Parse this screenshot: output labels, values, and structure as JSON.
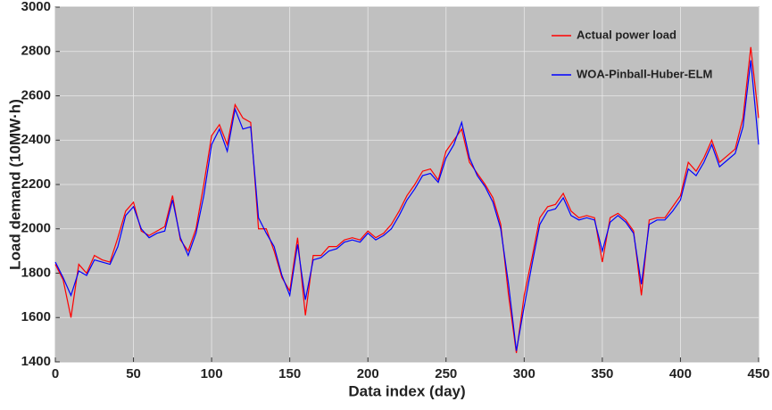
{
  "chart_data": {
    "type": "line",
    "xlabel": "Data index (day)",
    "ylabel": "Load demand (10MW·h)",
    "x": [
      0,
      5,
      10,
      15,
      20,
      25,
      30,
      35,
      40,
      45,
      50,
      55,
      60,
      65,
      70,
      75,
      80,
      85,
      90,
      95,
      100,
      105,
      110,
      115,
      120,
      125,
      130,
      135,
      140,
      145,
      150,
      155,
      160,
      165,
      170,
      175,
      180,
      185,
      190,
      195,
      200,
      205,
      210,
      215,
      220,
      225,
      230,
      235,
      240,
      245,
      250,
      255,
      260,
      265,
      270,
      275,
      280,
      285,
      290,
      295,
      300,
      305,
      310,
      315,
      320,
      325,
      330,
      335,
      340,
      345,
      350,
      355,
      360,
      365,
      370,
      375,
      380,
      385,
      390,
      395,
      400,
      405,
      410,
      415,
      420,
      425,
      430,
      435,
      440,
      445,
      450
    ],
    "series": [
      {
        "name": "Actual power load",
        "color": "#ff0000",
        "values": [
          1840,
          1770,
          1600,
          1840,
          1800,
          1880,
          1860,
          1850,
          1960,
          2080,
          2120,
          1990,
          1970,
          1990,
          2010,
          2150,
          1950,
          1900,
          2000,
          2200,
          2420,
          2470,
          2380,
          2560,
          2500,
          2480,
          2000,
          2000,
          1900,
          1780,
          1720,
          1960,
          1610,
          1880,
          1880,
          1920,
          1920,
          1950,
          1960,
          1950,
          1990,
          1960,
          1980,
          2020,
          2080,
          2150,
          2200,
          2260,
          2270,
          2220,
          2350,
          2400,
          2450,
          2300,
          2250,
          2200,
          2140,
          2020,
          1700,
          1440,
          1700,
          1870,
          2050,
          2100,
          2110,
          2160,
          2080,
          2050,
          2060,
          2050,
          1850,
          2050,
          2070,
          2040,
          1990,
          1700,
          2040,
          2050,
          2050,
          2100,
          2150,
          2300,
          2260,
          2320,
          2400,
          2300,
          2330,
          2360,
          2500,
          2820,
          2500
        ]
      },
      {
        "name": "WOA-Pinball-Huber-ELM",
        "color": "#0000ff",
        "values": [
          1850,
          1780,
          1700,
          1810,
          1790,
          1860,
          1850,
          1840,
          1920,
          2060,
          2100,
          2000,
          1960,
          1980,
          1990,
          2130,
          1960,
          1880,
          1980,
          2150,
          2380,
          2450,
          2350,
          2540,
          2450,
          2460,
          2050,
          1980,
          1920,
          1790,
          1700,
          1930,
          1680,
          1860,
          1870,
          1900,
          1910,
          1940,
          1950,
          1940,
          1980,
          1950,
          1970,
          2000,
          2060,
          2130,
          2180,
          2240,
          2250,
          2210,
          2320,
          2380,
          2480,
          2320,
          2240,
          2190,
          2120,
          2000,
          1750,
          1450,
          1650,
          1840,
          2020,
          2080,
          2090,
          2140,
          2060,
          2040,
          2050,
          2040,
          1900,
          2030,
          2060,
          2030,
          1980,
          1750,
          2020,
          2040,
          2040,
          2080,
          2130,
          2270,
          2240,
          2300,
          2380,
          2280,
          2310,
          2340,
          2460,
          2760,
          2380
        ]
      }
    ],
    "xlim": [
      0,
      450
    ],
    "xticks": [
      0,
      50,
      100,
      150,
      200,
      250,
      300,
      350,
      400,
      450
    ],
    "ylim": [
      1400,
      3000
    ],
    "yticks": [
      1400,
      1600,
      1800,
      2000,
      2200,
      2400,
      2600,
      2800,
      3000
    ],
    "grid": true,
    "legend": "upper right"
  }
}
